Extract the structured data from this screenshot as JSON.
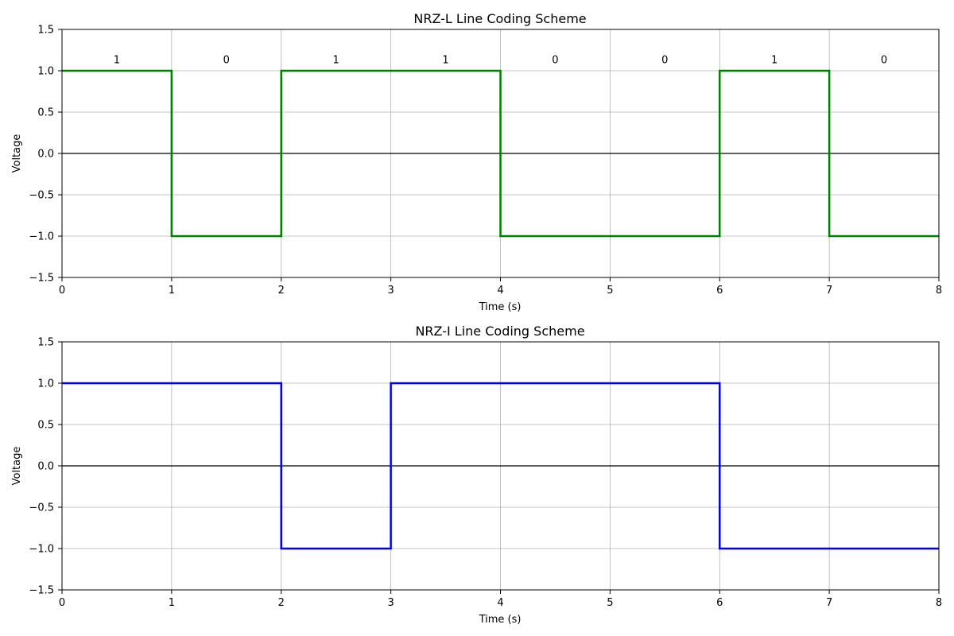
{
  "chart_data": [
    {
      "type": "line",
      "title": "NRZ-L Line Coding Scheme",
      "xlabel": "Time (s)",
      "ylabel": "Voltage",
      "xlim": [
        0,
        8
      ],
      "ylim": [
        -1.5,
        1.5
      ],
      "x_ticks": [
        "0",
        "1",
        "2",
        "3",
        "4",
        "5",
        "6",
        "7",
        "8"
      ],
      "y_ticks": [
        "1.5",
        "1.0",
        "0.5",
        "0.0",
        "−0.5",
        "−1.0",
        "−1.5"
      ],
      "grid": true,
      "zero_line": true,
      "bits": [
        "1",
        "0",
        "1",
        "1",
        "0",
        "0",
        "1",
        "0"
      ],
      "series": [
        {
          "color": "#008000",
          "step": true,
          "x": [
            0,
            1,
            2,
            3,
            4,
            5,
            6,
            7,
            8
          ],
          "y": [
            1,
            -1,
            1,
            1,
            -1,
            -1,
            1,
            -1,
            -1
          ]
        }
      ]
    },
    {
      "type": "line",
      "title": "NRZ-I Line Coding Scheme",
      "xlabel": "Time (s)",
      "ylabel": "Voltage",
      "xlim": [
        0,
        8
      ],
      "ylim": [
        -1.5,
        1.5
      ],
      "x_ticks": [
        "0",
        "1",
        "2",
        "3",
        "4",
        "5",
        "6",
        "7",
        "8"
      ],
      "y_ticks": [
        "1.5",
        "1.0",
        "0.5",
        "0.0",
        "−0.5",
        "−1.0",
        "−1.5"
      ],
      "grid": true,
      "zero_line": true,
      "bits": [],
      "series": [
        {
          "color": "#0000ff",
          "step": true,
          "x": [
            0,
            1,
            2,
            3,
            4,
            5,
            6,
            7,
            8
          ],
          "y": [
            1,
            1,
            -1,
            1,
            1,
            1,
            -1,
            -1,
            -1
          ]
        }
      ]
    }
  ]
}
